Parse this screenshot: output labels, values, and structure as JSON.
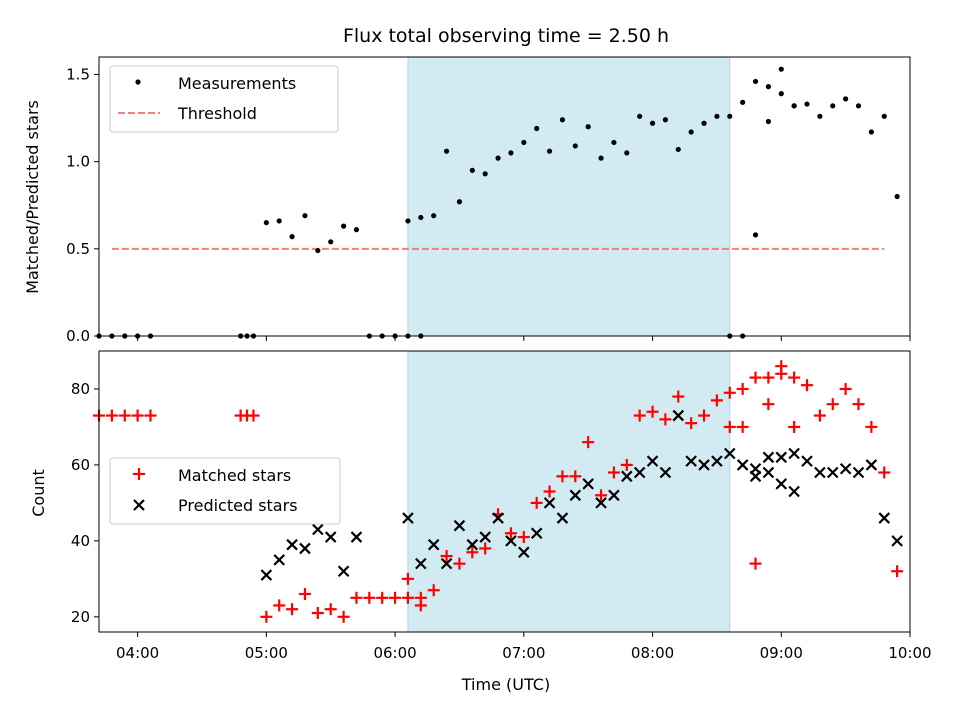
{
  "chart_data": {
    "type": "scatter",
    "title": "Flux total observing time = 2.50 h",
    "xlabel": "Time (UTC)",
    "x_ticks": [
      "04:00",
      "05:00",
      "06:00",
      "07:00",
      "08:00",
      "09:00",
      "10:00"
    ],
    "xlim": [
      "03:42",
      "10:00"
    ],
    "highlight_span": {
      "start": "06:06",
      "end": "08:36"
    },
    "colors": {
      "measurement": "#000000",
      "threshold": "#f08080",
      "matched": "#ff0000",
      "predicted": "#000000",
      "span": "#add8e6"
    },
    "top": {
      "ylabel": "Matched/Predicted stars",
      "ylim": [
        0,
        1.6
      ],
      "y_ticks": [
        "0.0",
        "0.5",
        "1.0",
        "1.5"
      ],
      "legend": {
        "measurements": "Measurements",
        "threshold": "Threshold"
      },
      "threshold": {
        "value": 0.5,
        "x_start": "03:48",
        "x_end": "09:48"
      },
      "measurements": [
        {
          "t": "03:42",
          "v": 0
        },
        {
          "t": "03:48",
          "v": 0
        },
        {
          "t": "03:54",
          "v": 0
        },
        {
          "t": "04:00",
          "v": 0
        },
        {
          "t": "04:06",
          "v": 0
        },
        {
          "t": "04:48",
          "v": 0
        },
        {
          "t": "04:51",
          "v": 0
        },
        {
          "t": "04:54",
          "v": 0
        },
        {
          "t": "05:00",
          "v": 0.65
        },
        {
          "t": "05:06",
          "v": 0.66
        },
        {
          "t": "05:12",
          "v": 0.57
        },
        {
          "t": "05:18",
          "v": 0.69
        },
        {
          "t": "05:24",
          "v": 0.49
        },
        {
          "t": "05:30",
          "v": 0.54
        },
        {
          "t": "05:36",
          "v": 0.63
        },
        {
          "t": "05:42",
          "v": 0.61
        },
        {
          "t": "05:48",
          "v": 0
        },
        {
          "t": "05:54",
          "v": 0
        },
        {
          "t": "06:00",
          "v": 0
        },
        {
          "t": "06:06",
          "v": 0
        },
        {
          "t": "06:12",
          "v": 0
        },
        {
          "t": "06:06",
          "v": 0.66
        },
        {
          "t": "06:12",
          "v": 0.68
        },
        {
          "t": "06:18",
          "v": 0.69
        },
        {
          "t": "06:24",
          "v": 1.06
        },
        {
          "t": "06:30",
          "v": 0.77
        },
        {
          "t": "06:36",
          "v": 0.95
        },
        {
          "t": "06:42",
          "v": 0.93
        },
        {
          "t": "06:48",
          "v": 1.02
        },
        {
          "t": "06:54",
          "v": 1.05
        },
        {
          "t": "07:00",
          "v": 1.11
        },
        {
          "t": "07:06",
          "v": 1.19
        },
        {
          "t": "07:12",
          "v": 1.06
        },
        {
          "t": "07:18",
          "v": 1.24
        },
        {
          "t": "07:24",
          "v": 1.09
        },
        {
          "t": "07:30",
          "v": 1.2
        },
        {
          "t": "07:36",
          "v": 1.02
        },
        {
          "t": "07:42",
          "v": 1.11
        },
        {
          "t": "07:48",
          "v": 1.05
        },
        {
          "t": "07:54",
          "v": 1.26
        },
        {
          "t": "08:00",
          "v": 1.22
        },
        {
          "t": "08:06",
          "v": 1.24
        },
        {
          "t": "08:12",
          "v": 1.07
        },
        {
          "t": "08:18",
          "v": 1.17
        },
        {
          "t": "08:24",
          "v": 1.22
        },
        {
          "t": "08:30",
          "v": 1.26
        },
        {
          "t": "08:36",
          "v": 1.26
        },
        {
          "t": "08:42",
          "v": 1.34
        },
        {
          "t": "08:48",
          "v": 1.46
        },
        {
          "t": "08:54",
          "v": 1.43
        },
        {
          "t": "09:00",
          "v": 1.53
        },
        {
          "t": "09:06",
          "v": 1.32
        },
        {
          "t": "08:36",
          "v": 0
        },
        {
          "t": "08:42",
          "v": 0
        },
        {
          "t": "08:48",
          "v": 0.58
        },
        {
          "t": "08:54",
          "v": 1.23
        },
        {
          "t": "09:00",
          "v": 1.39
        },
        {
          "t": "09:06",
          "v": 1.32
        },
        {
          "t": "09:12",
          "v": 1.33
        },
        {
          "t": "09:18",
          "v": 1.26
        },
        {
          "t": "09:24",
          "v": 1.32
        },
        {
          "t": "09:30",
          "v": 1.36
        },
        {
          "t": "09:36",
          "v": 1.32
        },
        {
          "t": "09:42",
          "v": 1.17
        },
        {
          "t": "09:48",
          "v": 1.26
        },
        {
          "t": "09:54",
          "v": 0.8
        }
      ]
    },
    "bottom": {
      "ylabel": "Count",
      "ylim": [
        16,
        90
      ],
      "y_ticks": [
        "20",
        "40",
        "60",
        "80"
      ],
      "legend": {
        "matched": "Matched stars",
        "predicted": "Predicted stars"
      },
      "matched": [
        {
          "t": "03:42",
          "v": 73
        },
        {
          "t": "03:48",
          "v": 73
        },
        {
          "t": "03:54",
          "v": 73
        },
        {
          "t": "04:00",
          "v": 73
        },
        {
          "t": "04:06",
          "v": 73
        },
        {
          "t": "04:48",
          "v": 73
        },
        {
          "t": "04:51",
          "v": 73
        },
        {
          "t": "04:54",
          "v": 73
        },
        {
          "t": "05:00",
          "v": 20
        },
        {
          "t": "05:06",
          "v": 23
        },
        {
          "t": "05:12",
          "v": 22
        },
        {
          "t": "05:18",
          "v": 26
        },
        {
          "t": "05:24",
          "v": 21
        },
        {
          "t": "05:30",
          "v": 22
        },
        {
          "t": "05:36",
          "v": 20
        },
        {
          "t": "05:42",
          "v": 25
        },
        {
          "t": "05:48",
          "v": 25
        },
        {
          "t": "05:54",
          "v": 25
        },
        {
          "t": "06:00",
          "v": 25
        },
        {
          "t": "06:06",
          "v": 25
        },
        {
          "t": "06:12",
          "v": 25
        },
        {
          "t": "06:06",
          "v": 30
        },
        {
          "t": "06:12",
          "v": 23
        },
        {
          "t": "06:18",
          "v": 27
        },
        {
          "t": "06:24",
          "v": 36
        },
        {
          "t": "06:30",
          "v": 34
        },
        {
          "t": "06:36",
          "v": 37
        },
        {
          "t": "06:42",
          "v": 38
        },
        {
          "t": "06:48",
          "v": 47
        },
        {
          "t": "06:54",
          "v": 42
        },
        {
          "t": "07:00",
          "v": 41
        },
        {
          "t": "07:06",
          "v": 50
        },
        {
          "t": "07:12",
          "v": 53
        },
        {
          "t": "07:18",
          "v": 57
        },
        {
          "t": "07:24",
          "v": 57
        },
        {
          "t": "07:30",
          "v": 66
        },
        {
          "t": "07:36",
          "v": 52
        },
        {
          "t": "07:42",
          "v": 58
        },
        {
          "t": "07:48",
          "v": 60
        },
        {
          "t": "07:54",
          "v": 73
        },
        {
          "t": "08:00",
          "v": 74
        },
        {
          "t": "08:06",
          "v": 72
        },
        {
          "t": "08:12",
          "v": 78
        },
        {
          "t": "08:18",
          "v": 71
        },
        {
          "t": "08:24",
          "v": 73
        },
        {
          "t": "08:30",
          "v": 77
        },
        {
          "t": "08:36",
          "v": 79
        },
        {
          "t": "08:42",
          "v": 80
        },
        {
          "t": "08:48",
          "v": 83
        },
        {
          "t": "08:54",
          "v": 83
        },
        {
          "t": "09:00",
          "v": 84
        },
        {
          "t": "09:06",
          "v": 70
        },
        {
          "t": "08:36",
          "v": 70
        },
        {
          "t": "08:42",
          "v": 70
        },
        {
          "t": "08:48",
          "v": 34
        },
        {
          "t": "08:54",
          "v": 76
        },
        {
          "t": "09:00",
          "v": 86
        },
        {
          "t": "09:06",
          "v": 83
        },
        {
          "t": "09:12",
          "v": 81
        },
        {
          "t": "09:18",
          "v": 73
        },
        {
          "t": "09:24",
          "v": 76
        },
        {
          "t": "09:30",
          "v": 80
        },
        {
          "t": "09:36",
          "v": 76
        },
        {
          "t": "09:42",
          "v": 70
        },
        {
          "t": "09:48",
          "v": 58
        },
        {
          "t": "09:54",
          "v": 32
        }
      ],
      "predicted": [
        {
          "t": "05:00",
          "v": 31
        },
        {
          "t": "05:06",
          "v": 35
        },
        {
          "t": "05:12",
          "v": 39
        },
        {
          "t": "05:18",
          "v": 38
        },
        {
          "t": "05:24",
          "v": 43
        },
        {
          "t": "05:30",
          "v": 41
        },
        {
          "t": "05:36",
          "v": 32
        },
        {
          "t": "05:42",
          "v": 41
        },
        {
          "t": "06:06",
          "v": 46
        },
        {
          "t": "06:12",
          "v": 34
        },
        {
          "t": "06:18",
          "v": 39
        },
        {
          "t": "06:24",
          "v": 34
        },
        {
          "t": "06:30",
          "v": 44
        },
        {
          "t": "06:36",
          "v": 39
        },
        {
          "t": "06:42",
          "v": 41
        },
        {
          "t": "06:48",
          "v": 46
        },
        {
          "t": "06:54",
          "v": 40
        },
        {
          "t": "07:00",
          "v": 37
        },
        {
          "t": "07:06",
          "v": 42
        },
        {
          "t": "07:12",
          "v": 50
        },
        {
          "t": "07:18",
          "v": 46
        },
        {
          "t": "07:24",
          "v": 52
        },
        {
          "t": "07:30",
          "v": 55
        },
        {
          "t": "07:36",
          "v": 50
        },
        {
          "t": "07:42",
          "v": 52
        },
        {
          "t": "07:48",
          "v": 57
        },
        {
          "t": "07:54",
          "v": 58
        },
        {
          "t": "08:00",
          "v": 61
        },
        {
          "t": "08:06",
          "v": 58
        },
        {
          "t": "08:12",
          "v": 73
        },
        {
          "t": "08:18",
          "v": 61
        },
        {
          "t": "08:24",
          "v": 60
        },
        {
          "t": "08:30",
          "v": 61
        },
        {
          "t": "08:36",
          "v": 63
        },
        {
          "t": "08:42",
          "v": 60
        },
        {
          "t": "08:48",
          "v": 57
        },
        {
          "t": "08:54",
          "v": 58
        },
        {
          "t": "09:00",
          "v": 55
        },
        {
          "t": "09:06",
          "v": 53
        },
        {
          "t": "08:48",
          "v": 59
        },
        {
          "t": "08:54",
          "v": 62
        },
        {
          "t": "09:00",
          "v": 62
        },
        {
          "t": "09:06",
          "v": 63
        },
        {
          "t": "09:12",
          "v": 61
        },
        {
          "t": "09:18",
          "v": 58
        },
        {
          "t": "09:24",
          "v": 58
        },
        {
          "t": "09:30",
          "v": 59
        },
        {
          "t": "09:36",
          "v": 58
        },
        {
          "t": "09:42",
          "v": 60
        },
        {
          "t": "09:48",
          "v": 46
        },
        {
          "t": "09:54",
          "v": 40
        }
      ]
    }
  }
}
